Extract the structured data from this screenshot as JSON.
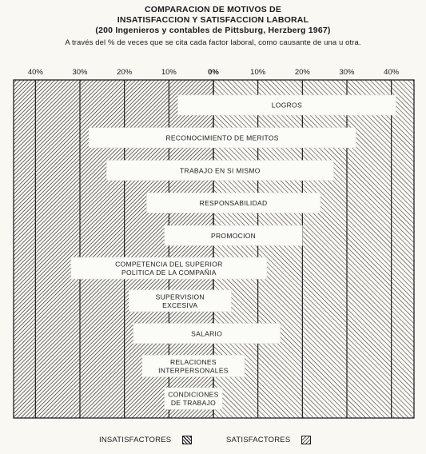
{
  "header": {
    "title_line1": "COMPARACION DE MOTIVOS DE",
    "title_line2": "INSATISFACCION Y SATISFACCION LABORAL",
    "title_line3": "(200 Ingenieros y contables de Pittsburg, Herzberg 1967)",
    "subtitle": "A través del % de veces que se cita cada factor laboral, como causante de una u otra."
  },
  "chart_data": {
    "type": "bar",
    "orientation": "horizontal-diverging",
    "xlim": [
      -45,
      45
    ],
    "tick_values": [
      -40,
      -30,
      -20,
      -10,
      0,
      10,
      20,
      30,
      40
    ],
    "tick_labels": [
      "40%",
      "30%",
      "20%",
      "10%",
      "0%",
      "10%",
      "20%",
      "30%",
      "40%"
    ],
    "categories": [
      [
        "LOGROS"
      ],
      [
        "RECONOCIMIENTO DE MERITOS"
      ],
      [
        "TRABAJO EN SI MISMO"
      ],
      [
        "RESPONSABILIDAD"
      ],
      [
        "PROMOCION"
      ],
      [
        "COMPETENCIA DEL SUPERIOR",
        "POLITICA DE LA COMPAÑIA"
      ],
      [
        "SUPERVISION",
        "EXCESIVA"
      ],
      [
        "SALARIO"
      ],
      [
        "RELACIONES",
        "INTERPERSONALES"
      ],
      [
        "CONDICIONES",
        "DE TRABAJO"
      ]
    ],
    "series": [
      {
        "name": "INSATISFACTORES",
        "values": [
          8,
          28,
          24,
          15,
          11,
          32,
          19,
          18,
          16,
          11
        ]
      },
      {
        "name": "SATISFACTORES",
        "values": [
          41,
          32,
          27,
          24,
          20,
          12,
          4,
          15,
          7,
          2
        ]
      }
    ],
    "grid": true,
    "legend_position": "bottom"
  }
}
